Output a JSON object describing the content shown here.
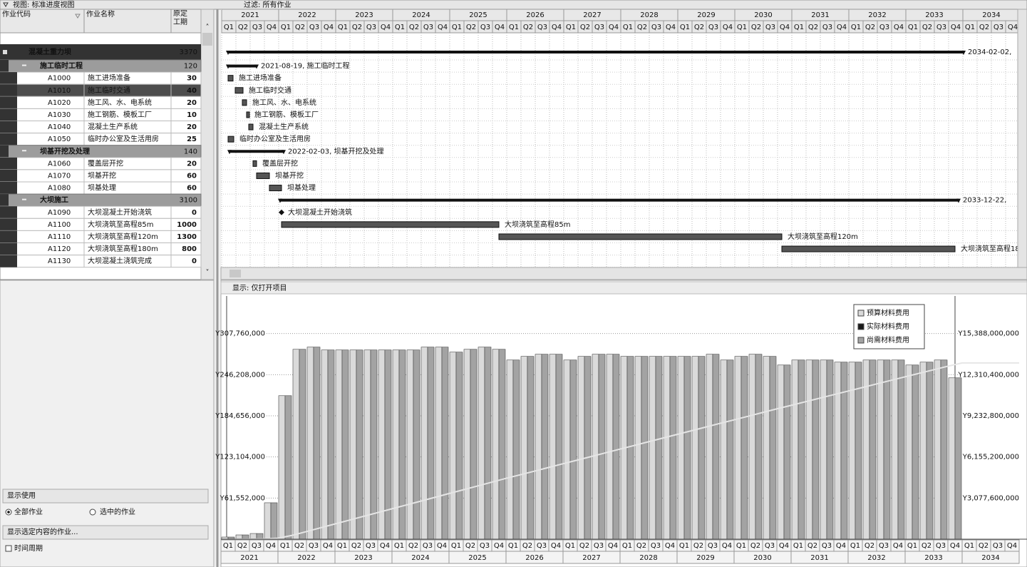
{
  "toolbar": {
    "view": "视图: 标准进度视图",
    "filter": "过滤: 所有作业"
  },
  "table": {
    "headers": [
      "作业代码",
      "作业名称",
      "原定工期"
    ]
  },
  "project": {
    "name": "混凝土重力坝",
    "duration": 3370,
    "bar_label": "2034-02-02,",
    "groups": [
      {
        "name": "施工临时工程",
        "duration": 120,
        "bar_label": "2021-08-19, 施工临时工程",
        "activities": [
          {
            "code": "A1000",
            "name": "施工进场准备",
            "duration": 30
          },
          {
            "code": "A1010",
            "name": "施工临时交通",
            "duration": 40
          },
          {
            "code": "A1020",
            "name": "施工风、水、电系统",
            "duration": 20
          },
          {
            "code": "A1030",
            "name": "施工钢筋、模板工厂",
            "duration": 10
          },
          {
            "code": "A1040",
            "name": "混凝土生产系统",
            "duration": 20
          },
          {
            "code": "A1050",
            "name": "临时办公室及生活用房",
            "duration": 25
          }
        ]
      },
      {
        "name": "坝基开挖及处理",
        "duration": 140,
        "bar_label": "2022-02-03, 坝基开挖及处理",
        "activities": [
          {
            "code": "A1060",
            "name": "覆盖层开挖",
            "duration": 20
          },
          {
            "code": "A1070",
            "name": "坝基开挖",
            "duration": 60
          },
          {
            "code": "A1080",
            "name": "坝基处理",
            "duration": 60
          }
        ]
      },
      {
        "name": "大坝施工",
        "duration": 3100,
        "bar_label": "2033-12-22,",
        "activities": [
          {
            "code": "A1090",
            "name": "大坝混凝土开始浇筑",
            "duration": 0
          },
          {
            "code": "A1100",
            "name": "大坝浇筑至高程85m",
            "duration": 1000
          },
          {
            "code": "A1110",
            "name": "大坝浇筑至高程120m",
            "duration": 1300
          },
          {
            "code": "A1120",
            "name": "大坝浇筑至高程180m",
            "duration": 800
          },
          {
            "code": "A1130",
            "name": "大坝混凝土浇筑完成",
            "duration": 0
          }
        ]
      }
    ]
  },
  "histogram_panel": {
    "title": "显示: 仅打开项目",
    "options": {
      "title": "显示使用",
      "all": "全部作业",
      "selected": "选中的作业",
      "filter_title": "显示选定内容的作业...",
      "time_period": "时间周期"
    }
  },
  "chart_data": {
    "type": "bar",
    "years": [
      "2021",
      "2022",
      "2023",
      "2024",
      "2025",
      "2026",
      "2027",
      "2028",
      "2029",
      "2030",
      "2031",
      "2032",
      "2033",
      "2034"
    ],
    "quarters": [
      "Q1",
      "Q2",
      "Q3",
      "Q4"
    ],
    "series": [
      {
        "name": "预算材料费用",
        "color": "#dadada",
        "values": [
          3200000,
          6400000,
          8500000,
          54500000,
          214800000,
          284200000,
          287500000,
          283200000,
          283200000,
          283200000,
          283200000,
          283200000,
          283200000,
          283200000,
          287500000,
          287500000,
          280000000,
          284200000,
          287500000,
          284200000,
          268200000,
          273600000,
          276800000,
          276800000,
          268200000,
          273600000,
          276800000,
          276800000,
          273600000,
          273600000,
          273600000,
          273600000,
          273600000,
          273600000,
          276800000,
          268200000,
          273600000,
          276800000,
          273600000,
          260700000,
          268200000,
          268200000,
          268200000,
          265000000,
          265000000,
          268200000,
          268200000,
          268200000,
          260700000,
          265000000,
          268200000,
          241500000,
          null,
          null,
          null,
          null
        ]
      },
      {
        "name": "实际材料费用",
        "color": "#1a1a1a",
        "values": [
          0,
          0,
          0,
          0,
          0,
          0,
          0,
          0,
          0,
          0,
          0,
          0,
          0,
          0,
          0,
          0,
          0,
          0,
          0,
          0,
          0,
          0,
          0,
          0,
          0,
          0,
          0,
          0,
          0,
          0,
          0,
          0,
          0,
          0,
          0,
          0,
          0,
          0,
          0,
          0,
          0,
          0,
          0,
          0,
          0,
          0,
          0,
          0,
          0,
          0,
          0,
          0,
          null,
          null,
          null,
          null
        ]
      },
      {
        "name": "尚需材料费用",
        "color": "#a3a3a3",
        "values": [
          3200000,
          6400000,
          8500000,
          54500000,
          214800000,
          284200000,
          287500000,
          283200000,
          283200000,
          283200000,
          283200000,
          283200000,
          283200000,
          283200000,
          287500000,
          287500000,
          280000000,
          284200000,
          287500000,
          284200000,
          268200000,
          273600000,
          276800000,
          276800000,
          268200000,
          273600000,
          276800000,
          276800000,
          273600000,
          273600000,
          273600000,
          273600000,
          273600000,
          273600000,
          276800000,
          268200000,
          273600000,
          276800000,
          273600000,
          260700000,
          268200000,
          268200000,
          268200000,
          265000000,
          265000000,
          268200000,
          268200000,
          268200000,
          260700000,
          265000000,
          268200000,
          241500000,
          null,
          null,
          null,
          null
        ]
      }
    ],
    "cumulative": {
      "axis": "y2",
      "color": "#e6e6e6",
      "values": [
        3200000,
        9600000,
        18100000,
        72600000,
        287400000,
        571600000,
        859100000,
        1142300000,
        1425500000,
        1708700000,
        1991900000,
        2275100000,
        2558300000,
        2841500000,
        3129000000,
        3416500000,
        3696500000,
        3980700000,
        4268200000,
        4552400000,
        4820600000,
        5094200000,
        5371000000,
        5647800000,
        5916000000,
        6189600000,
        6466400000,
        6743200000,
        7016800000,
        7290400000,
        7564000000,
        7837600000,
        8111200000,
        8384800000,
        8661600000,
        8929800000,
        9203400000,
        9480200000,
        9753800000,
        10014500000,
        10282700000,
        10550900000,
        10819100000,
        11084100000,
        11349100000,
        11617300000,
        11885500000,
        12153700000,
        12414400000,
        12679400000,
        12947600000,
        13189100000,
        13189100000,
        13189100000,
        13189100000,
        13189100000
      ]
    },
    "ylim": [
      0,
      364000000
    ],
    "yticks": [
      {
        "value": 61552000,
        "label": "Y61,552,000"
      },
      {
        "value": 123104000,
        "label": "Y123,104,000"
      },
      {
        "value": 184656000,
        "label": "Y184,656,000"
      },
      {
        "value": 246208000,
        "label": "Y246,208,000"
      },
      {
        "value": 307760000,
        "label": "Y307,760,000"
      }
    ],
    "y2lim": [
      0,
      18200000000
    ],
    "y2ticks": [
      {
        "value": 3077600000,
        "label": "Y3,077,600,000"
      },
      {
        "value": 6155200000,
        "label": "Y6,155,200,000"
      },
      {
        "value": 9232800000,
        "label": "Y9,232,800,000"
      },
      {
        "value": 12310400000,
        "label": "Y12,310,400,000"
      },
      {
        "value": 15388000000,
        "label": "Y15,388,000,000"
      }
    ],
    "grid": true,
    "legend": "top-right"
  }
}
